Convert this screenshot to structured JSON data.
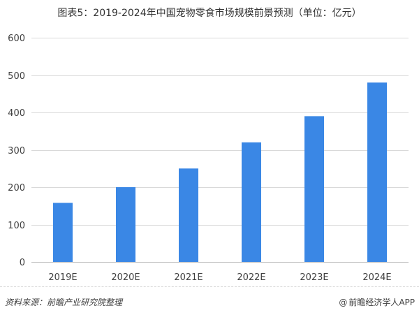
{
  "chart_data": {
    "type": "bar",
    "title": "图表5：2019-2024年中国宠物零食市场规模前景预测（单位：亿元）",
    "categories": [
      "2019E",
      "2020E",
      "2021E",
      "2022E",
      "2023E",
      "2024E"
    ],
    "series": [
      {
        "values": [
          158,
          200,
          250,
          320,
          390,
          480
        ],
        "color": "#3a87e5"
      }
    ],
    "ylim": [
      0,
      600
    ],
    "yticks": [
      0,
      100,
      200,
      300,
      400,
      500,
      600
    ],
    "xlabel": "",
    "ylabel": "",
    "grid": "horizontal",
    "legend": "none"
  },
  "footer": {
    "source": "资料来源：前瞻产业研究院整理",
    "at_sign": "@",
    "brand": "前瞻经济学人APP"
  },
  "colors": {
    "bar": "#3a87e5",
    "grid": "#d9d9d9",
    "axis": "#bfbfbf",
    "text": "#404040"
  }
}
